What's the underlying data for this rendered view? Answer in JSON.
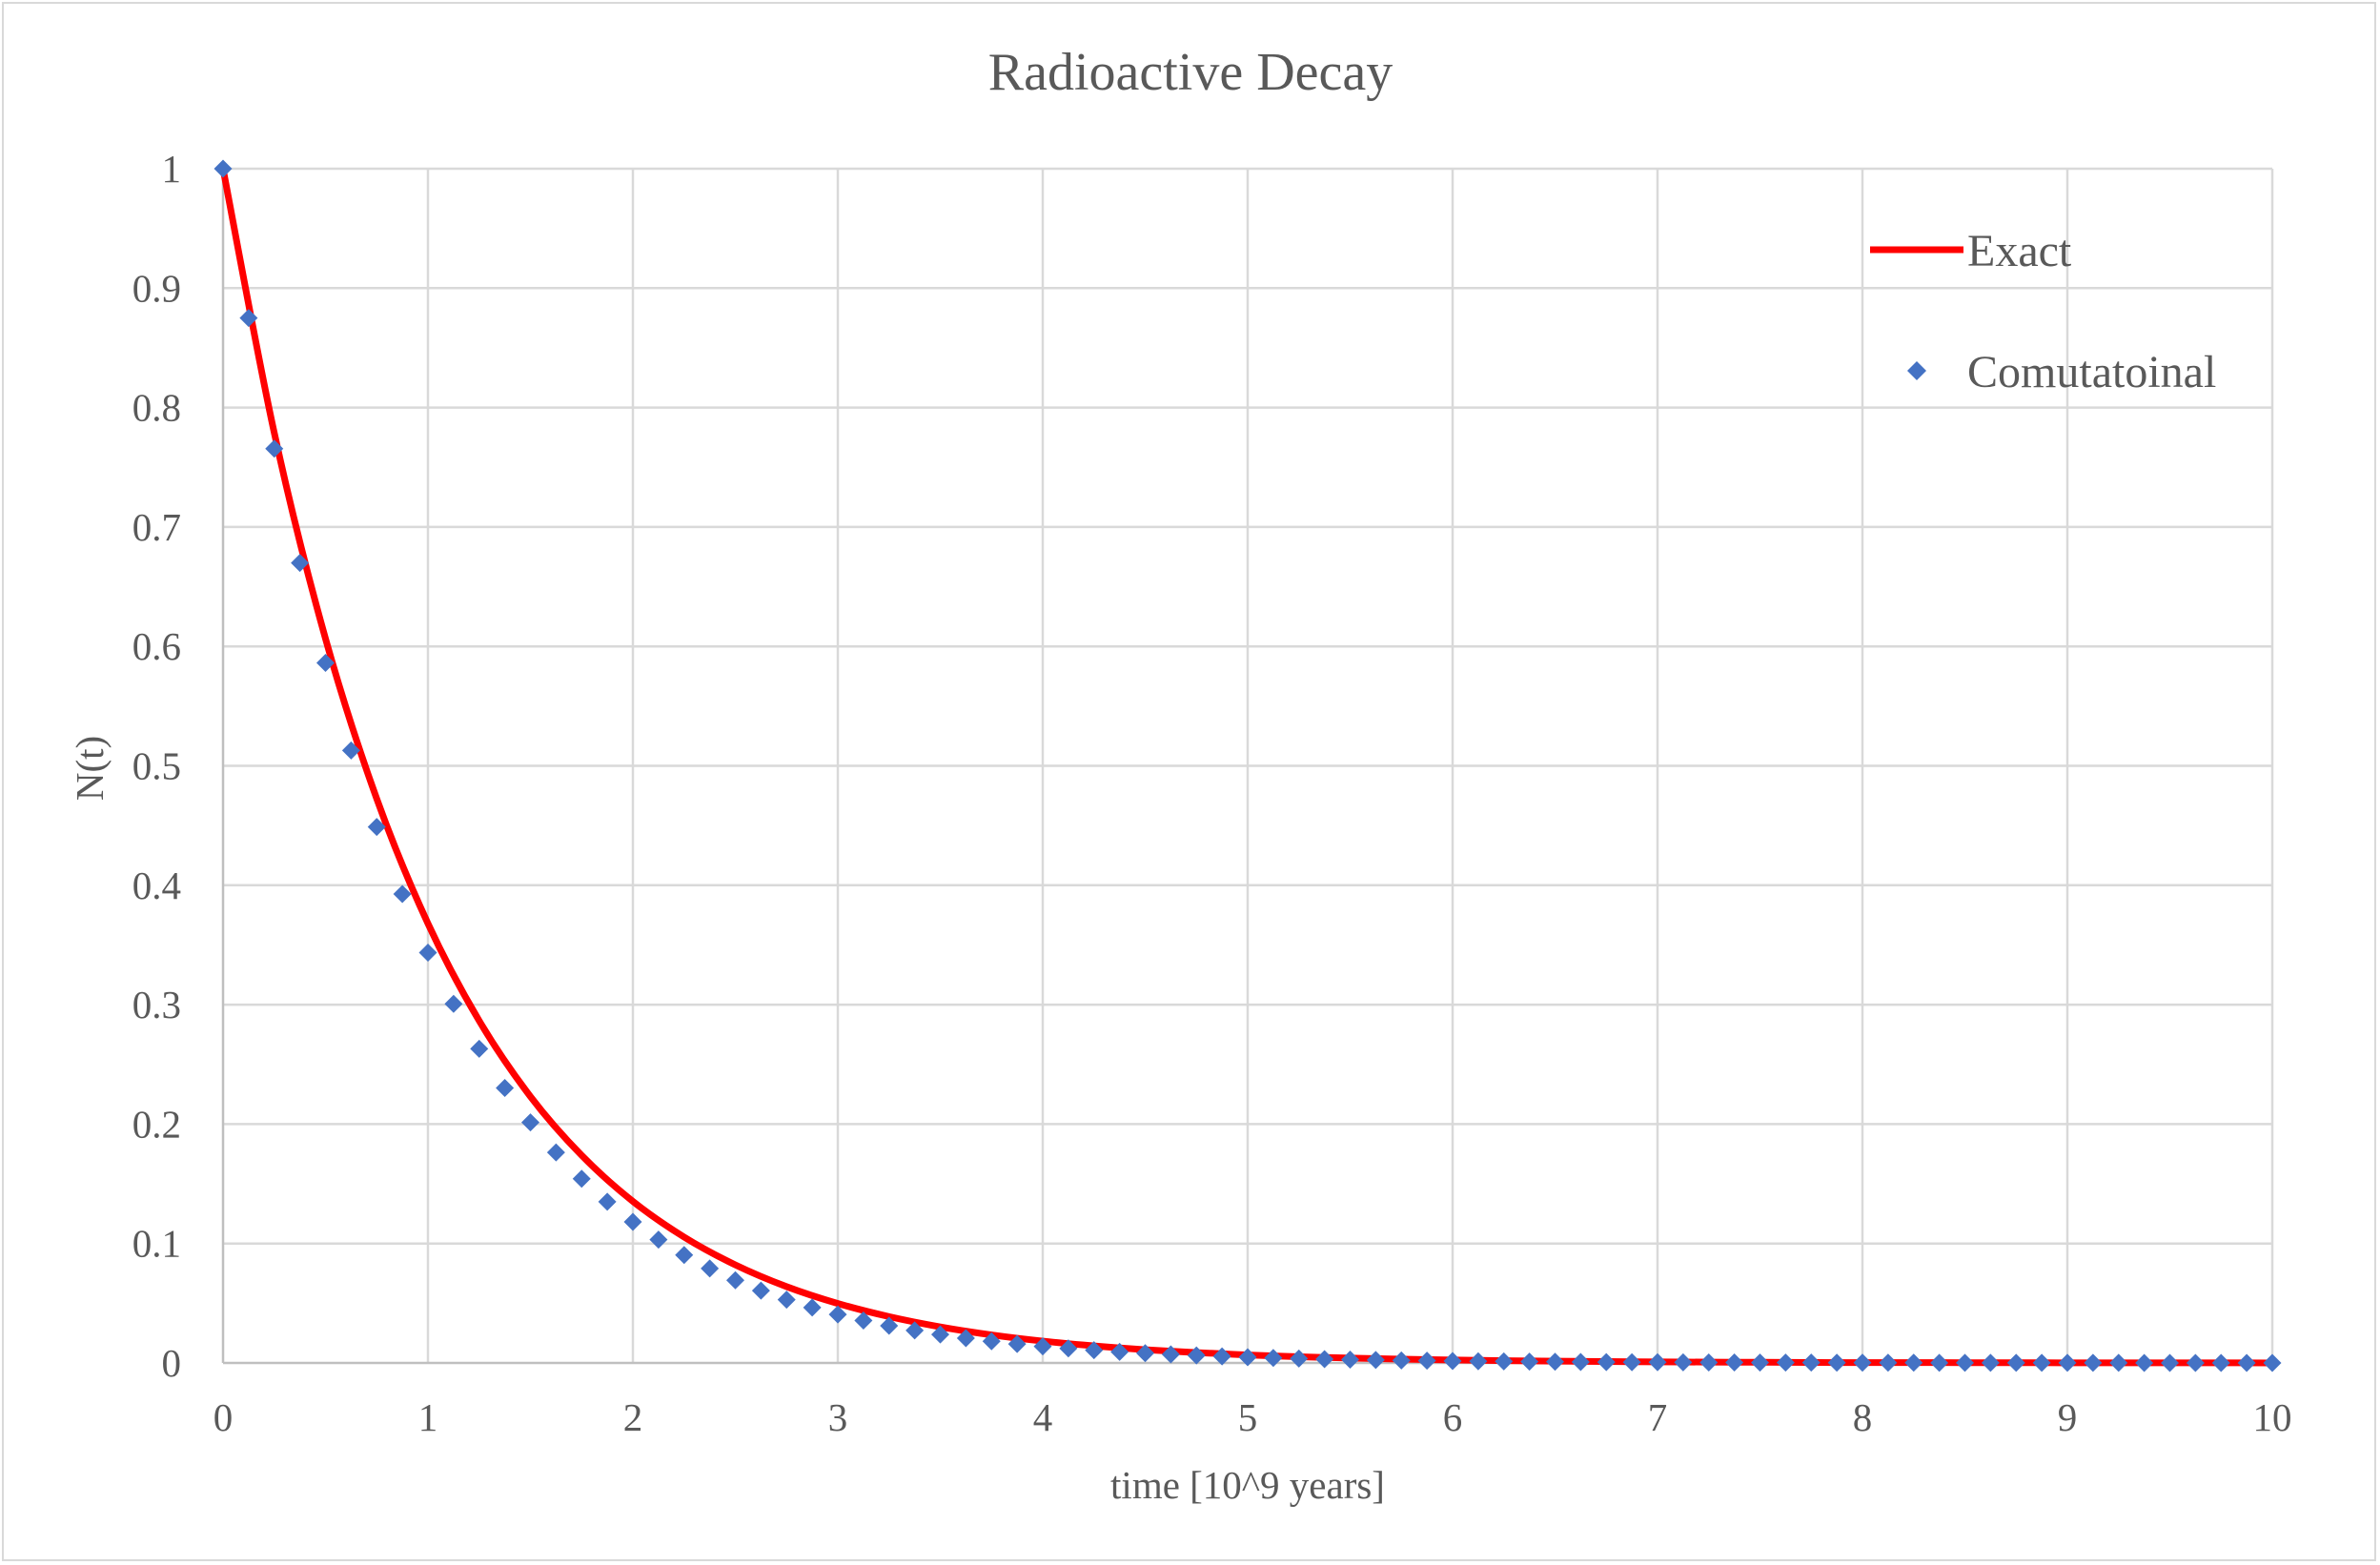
{
  "chart_data": {
    "type": "scatter",
    "title": "Radioactive Decay",
    "xlabel": "time [10^9 years]",
    "ylabel": "N(t)",
    "xlim": [
      0,
      10
    ],
    "ylim": [
      0,
      1
    ],
    "x_ticks": [
      "0",
      "1",
      "2",
      "3",
      "4",
      "5",
      "6",
      "7",
      "8",
      "9",
      "10"
    ],
    "y_ticks": [
      "0",
      "0.1",
      "0.2",
      "0.3",
      "0.4",
      "0.5",
      "0.6",
      "0.7",
      "0.8",
      "0.9",
      "1"
    ],
    "grid": true,
    "legend_position": "top-right",
    "series": [
      {
        "name": "Exact",
        "style": "line",
        "color": "#ff0000",
        "x": [
          0,
          0.25,
          0.5,
          0.75,
          1,
          1.25,
          1.5,
          1.75,
          2,
          2.25,
          2.5,
          2.75,
          3,
          3.25,
          3.5,
          3.75,
          4,
          4.25,
          4.5,
          4.75,
          5,
          5.25,
          5.5,
          5.75,
          6,
          6.25,
          6.5,
          6.75,
          7,
          7.25,
          7.5,
          7.75,
          8,
          8.25,
          8.5,
          8.75,
          9,
          9.25,
          9.5,
          9.75,
          10
        ],
        "y": [
          1,
          0.7788,
          0.6065,
          0.4724,
          0.3679,
          0.2865,
          0.2231,
          0.1738,
          0.1353,
          0.1054,
          0.0821,
          0.0639,
          0.0498,
          0.0388,
          0.0302,
          0.0235,
          0.0183,
          0.0143,
          0.0111,
          0.0087,
          0.0067,
          0.0052,
          0.0041,
          0.0032,
          0.0025,
          0.0019,
          0.0015,
          0.0012,
          0.0009,
          0.0007,
          0.0006,
          0.0004,
          0.0003,
          0.0003,
          0.0002,
          0.0002,
          0.0001,
          0.0001,
          0.0001,
          0.0001,
          0
        ]
      },
      {
        "name": "Comutatoinal",
        "style": "markers",
        "marker": "diamond",
        "color": "#4472c4",
        "x": [
          0,
          0.125,
          0.25,
          0.375,
          0.5,
          0.625,
          0.75,
          0.875,
          1,
          1.125,
          1.25,
          1.375,
          1.5,
          1.625,
          1.75,
          1.875,
          2,
          2.125,
          2.25,
          2.375,
          2.5,
          2.625,
          2.75,
          2.875,
          3,
          3.125,
          3.25,
          3.375,
          3.5,
          3.625,
          3.75,
          3.875,
          4,
          4.125,
          4.25,
          4.375,
          4.5,
          4.625,
          4.75,
          4.875,
          5,
          5.125,
          5.25,
          5.375,
          5.5,
          5.625,
          5.75,
          5.875,
          6,
          6.125,
          6.25,
          6.375,
          6.5,
          6.625,
          6.75,
          6.875,
          7,
          7.125,
          7.25,
          7.375,
          7.5,
          7.625,
          7.75,
          7.875,
          8,
          8.125,
          8.25,
          8.375,
          8.5,
          8.625,
          8.75,
          8.875,
          9,
          9.125,
          9.25,
          9.375,
          9.5,
          9.625,
          9.75,
          9.875,
          10
        ],
        "y": [
          1,
          0.875,
          0.7656,
          0.6699,
          0.5862,
          0.5129,
          0.4488,
          0.3927,
          0.3436,
          0.3007,
          0.2631,
          0.2302,
          0.2014,
          0.1763,
          0.1542,
          0.135,
          0.1181,
          0.1033,
          0.0904,
          0.0791,
          0.0692,
          0.0606,
          0.053,
          0.0464,
          0.0406,
          0.0355,
          0.0311,
          0.0272,
          0.0238,
          0.0208,
          0.0182,
          0.0159,
          0.0139,
          0.0122,
          0.0107,
          0.0093,
          0.0082,
          0.0072,
          0.0063,
          0.0055,
          0.0048,
          0.0042,
          0.0037,
          0.0032,
          0.0028,
          0.0025,
          0.0021,
          0.0019,
          0.0016,
          0.0014,
          0.0013,
          0.0011,
          0.001,
          0.0008,
          0.0007,
          0.0006,
          0.0006,
          0.0005,
          0.0004,
          0.0004,
          0.0003,
          0.0003,
          0.0003,
          0.0002,
          0.0002,
          0.0002,
          0.0002,
          0.0001,
          0.0001,
          0.0001,
          0.0001,
          0.0001,
          0.0001,
          0.0001,
          0.0001,
          0,
          0,
          0,
          0,
          0,
          0
        ]
      }
    ]
  }
}
